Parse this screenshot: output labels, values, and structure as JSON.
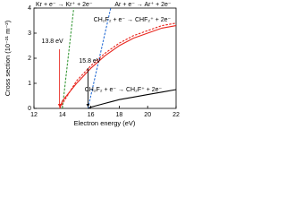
{
  "chart_data": {
    "type": "line",
    "xlabel": "Electron energy (eV)",
    "ylabel": "Cross section (10⁻²¹ m⁻²)",
    "xlim": [
      12,
      22
    ],
    "xticks": [
      12,
      14,
      16,
      18,
      20,
      22
    ],
    "ylim": [
      0,
      4
    ],
    "yticks": [
      0,
      1,
      2,
      3,
      4
    ],
    "series": [
      {
        "name": "Kr + e⁻ → Kr⁺ + 2e⁻",
        "color": "#3a9a3a",
        "dashed": true,
        "x": [
          14.0,
          14.2,
          14.5,
          14.8
        ],
        "values": [
          0,
          1,
          2.5,
          4
        ]
      },
      {
        "name": "Ar + e⁻ → Ar⁺ + 2e⁻",
        "color": "#2a6fd6",
        "dashed": true,
        "x": [
          15.8,
          16.2,
          16.8,
          17.4
        ],
        "values": [
          0,
          1,
          2.5,
          4
        ]
      },
      {
        "name": "CH₂F₂ + e⁻ → CHF₂⁺ + 2e⁻",
        "color": "#e8261e",
        "dashed": false,
        "x": [
          13.8,
          14,
          15,
          16,
          17,
          18,
          19,
          20,
          21,
          22
        ],
        "values": [
          0,
          0.3,
          1.0,
          1.6,
          2.1,
          2.5,
          2.8,
          3.0,
          3.2,
          3.3
        ]
      },
      {
        "color": "#e8261e",
        "dashed": true,
        "x": [
          13.8,
          15,
          16,
          17,
          18,
          19,
          20,
          21,
          22
        ],
        "values": [
          0,
          1.1,
          1.7,
          2.2,
          2.6,
          2.9,
          3.1,
          3.3,
          3.4
        ]
      },
      {
        "name": "CH₂F₂ + e⁻ → CH₂F⁺ + 2e⁻",
        "color": "#000000",
        "dashed": false,
        "x": [
          15.8,
          16,
          17,
          18,
          19,
          20,
          21,
          22
        ],
        "values": [
          0,
          0.05,
          0.2,
          0.35,
          0.45,
          0.55,
          0.65,
          0.75
        ]
      }
    ],
    "annotations": [
      {
        "text": "13.8 eV",
        "x": 13.8,
        "color": "#e8261e"
      },
      {
        "text": "15.8 eV",
        "x": 15.8,
        "color": "#000000"
      }
    ]
  }
}
